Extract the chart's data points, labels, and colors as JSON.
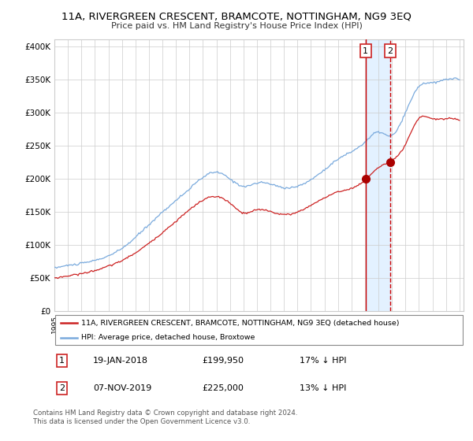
{
  "title": "11A, RIVERGREEN CRESCENT, BRAMCOTE, NOTTINGHAM, NG9 3EQ",
  "subtitle": "Price paid vs. HM Land Registry's House Price Index (HPI)",
  "legend_line1": "11A, RIVERGREEN CRESCENT, BRAMCOTE, NOTTINGHAM, NG9 3EQ (detached house)",
  "legend_line2": "HPI: Average price, detached house, Broxtowe",
  "sale1_date": "19-JAN-2018",
  "sale1_price": 199950,
  "sale1_label": "17% ↓ HPI",
  "sale2_date": "07-NOV-2019",
  "sale2_price": 225000,
  "sale2_label": "13% ↓ HPI",
  "footnote1": "Contains HM Land Registry data © Crown copyright and database right 2024.",
  "footnote2": "This data is licensed under the Open Government Licence v3.0.",
  "hpi_color": "#7aaadd",
  "property_color": "#cc2222",
  "marker_color": "#aa0000",
  "vline1_color": "#cc0000",
  "vline2_color": "#cc0000",
  "shade_color": "#ddeeff",
  "ylim": [
    0,
    410000
  ],
  "yticks": [
    0,
    50000,
    100000,
    150000,
    200000,
    250000,
    300000,
    350000,
    400000
  ],
  "sale1_year": 2018.05,
  "sale2_year": 2019.85,
  "xstart": 1995,
  "xend": 2025
}
